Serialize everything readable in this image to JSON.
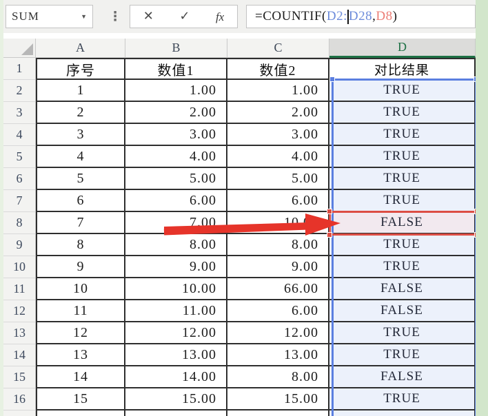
{
  "toolbar": {
    "name_box": {
      "value": "SUM",
      "dropdown_icon": "▼"
    },
    "separator_dots": "⋮",
    "cancel_label": "✕",
    "confirm_label": "✓",
    "fx_label": "fx",
    "formula": {
      "prefix": "=COUNTIF(",
      "range_part1": "D2:",
      "range_part2": "D28",
      "separator": ",",
      "criteria": "D8",
      "suffix": ")"
    }
  },
  "grid": {
    "column_headers": [
      "A",
      "B",
      "C",
      "D"
    ],
    "selected_column": "D",
    "table_header": {
      "row": "1",
      "cells": [
        "序号",
        "数值1",
        "数值2",
        "对比结果"
      ]
    },
    "rows": [
      {
        "row": "2",
        "a": "1",
        "b": "1.00",
        "c": "1.00",
        "d": "TRUE"
      },
      {
        "row": "3",
        "a": "2",
        "b": "2.00",
        "c": "2.00",
        "d": "TRUE"
      },
      {
        "row": "4",
        "a": "3",
        "b": "3.00",
        "c": "3.00",
        "d": "TRUE"
      },
      {
        "row": "5",
        "a": "4",
        "b": "4.00",
        "c": "4.00",
        "d": "TRUE"
      },
      {
        "row": "6",
        "a": "5",
        "b": "5.00",
        "c": "5.00",
        "d": "TRUE"
      },
      {
        "row": "7",
        "a": "6",
        "b": "6.00",
        "c": "6.00",
        "d": "TRUE"
      },
      {
        "row": "8",
        "a": "7",
        "b": "7.00",
        "c": "10.00",
        "d": "FALSE"
      },
      {
        "row": "9",
        "a": "8",
        "b": "8.00",
        "c": "8.00",
        "d": "TRUE"
      },
      {
        "row": "10",
        "a": "9",
        "b": "9.00",
        "c": "9.00",
        "d": "TRUE"
      },
      {
        "row": "11",
        "a": "10",
        "b": "10.00",
        "c": "66.00",
        "d": "FALSE"
      },
      {
        "row": "12",
        "a": "11",
        "b": "11.00",
        "c": "6.00",
        "d": "FALSE"
      },
      {
        "row": "13",
        "a": "12",
        "b": "12.00",
        "c": "12.00",
        "d": "TRUE"
      },
      {
        "row": "14",
        "a": "13",
        "b": "13.00",
        "c": "13.00",
        "d": "TRUE"
      },
      {
        "row": "15",
        "a": "14",
        "b": "14.00",
        "c": "8.00",
        "d": "FALSE"
      },
      {
        "row": "16",
        "a": "15",
        "b": "15.00",
        "c": "15.00",
        "d": "TRUE"
      }
    ],
    "highlighted_row": "8"
  },
  "colors": {
    "reference_blue": "#6d8cdb",
    "reference_red": "#ec7e76",
    "selection_border_blue": "#5b7fe0",
    "highlight_border_red": "#dc4d44",
    "selected_header_green": "#1e7145",
    "arrow_red": "#e6342a",
    "d_column_fill": "#ecf1fb",
    "d8_fill": "#f2e9ef"
  }
}
